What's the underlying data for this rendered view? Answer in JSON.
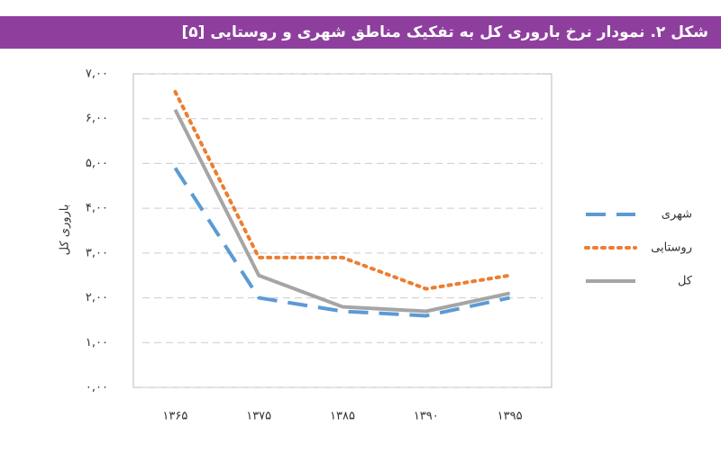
{
  "chart_data": {
    "type": "line",
    "title": "شکل ۲. نمودار نرخ باروری کل به تفکیک مناطق شهری و روستایی [۵]",
    "y_label": "باروری کل",
    "categories": [
      "۱۳۶۵",
      "۱۳۷۵",
      "۱۳۸۵",
      "۱۳۹۰",
      "۱۳۹۵"
    ],
    "series": [
      {
        "name": "شهری",
        "color": "#5b9bd5",
        "line_style": "dashed",
        "values": [
          4.9,
          2.0,
          1.7,
          1.6,
          2.0
        ]
      },
      {
        "name": "روستایی",
        "color": "#ed7d31",
        "line_style": "dotted",
        "values": [
          6.6,
          2.9,
          2.9,
          2.2,
          2.5
        ]
      },
      {
        "name": "کل",
        "color": "#a5a5a5",
        "line_style": "solid",
        "values": [
          6.2,
          2.5,
          1.8,
          1.7,
          2.1
        ]
      }
    ],
    "ylim": [
      0,
      7
    ],
    "yticks": [
      {
        "value": 0,
        "label": "۰,۰۰"
      },
      {
        "value": 1,
        "label": "۱,۰۰"
      },
      {
        "value": 2,
        "label": "۲,۰۰"
      },
      {
        "value": 3,
        "label": "۳,۰۰"
      },
      {
        "value": 4,
        "label": "۴,۰۰"
      },
      {
        "value": 5,
        "label": "۵,۰۰"
      },
      {
        "value": 6,
        "label": "۶,۰۰"
      },
      {
        "value": 7,
        "label": "۷,۰۰"
      }
    ],
    "grid": true,
    "legend": "right"
  }
}
